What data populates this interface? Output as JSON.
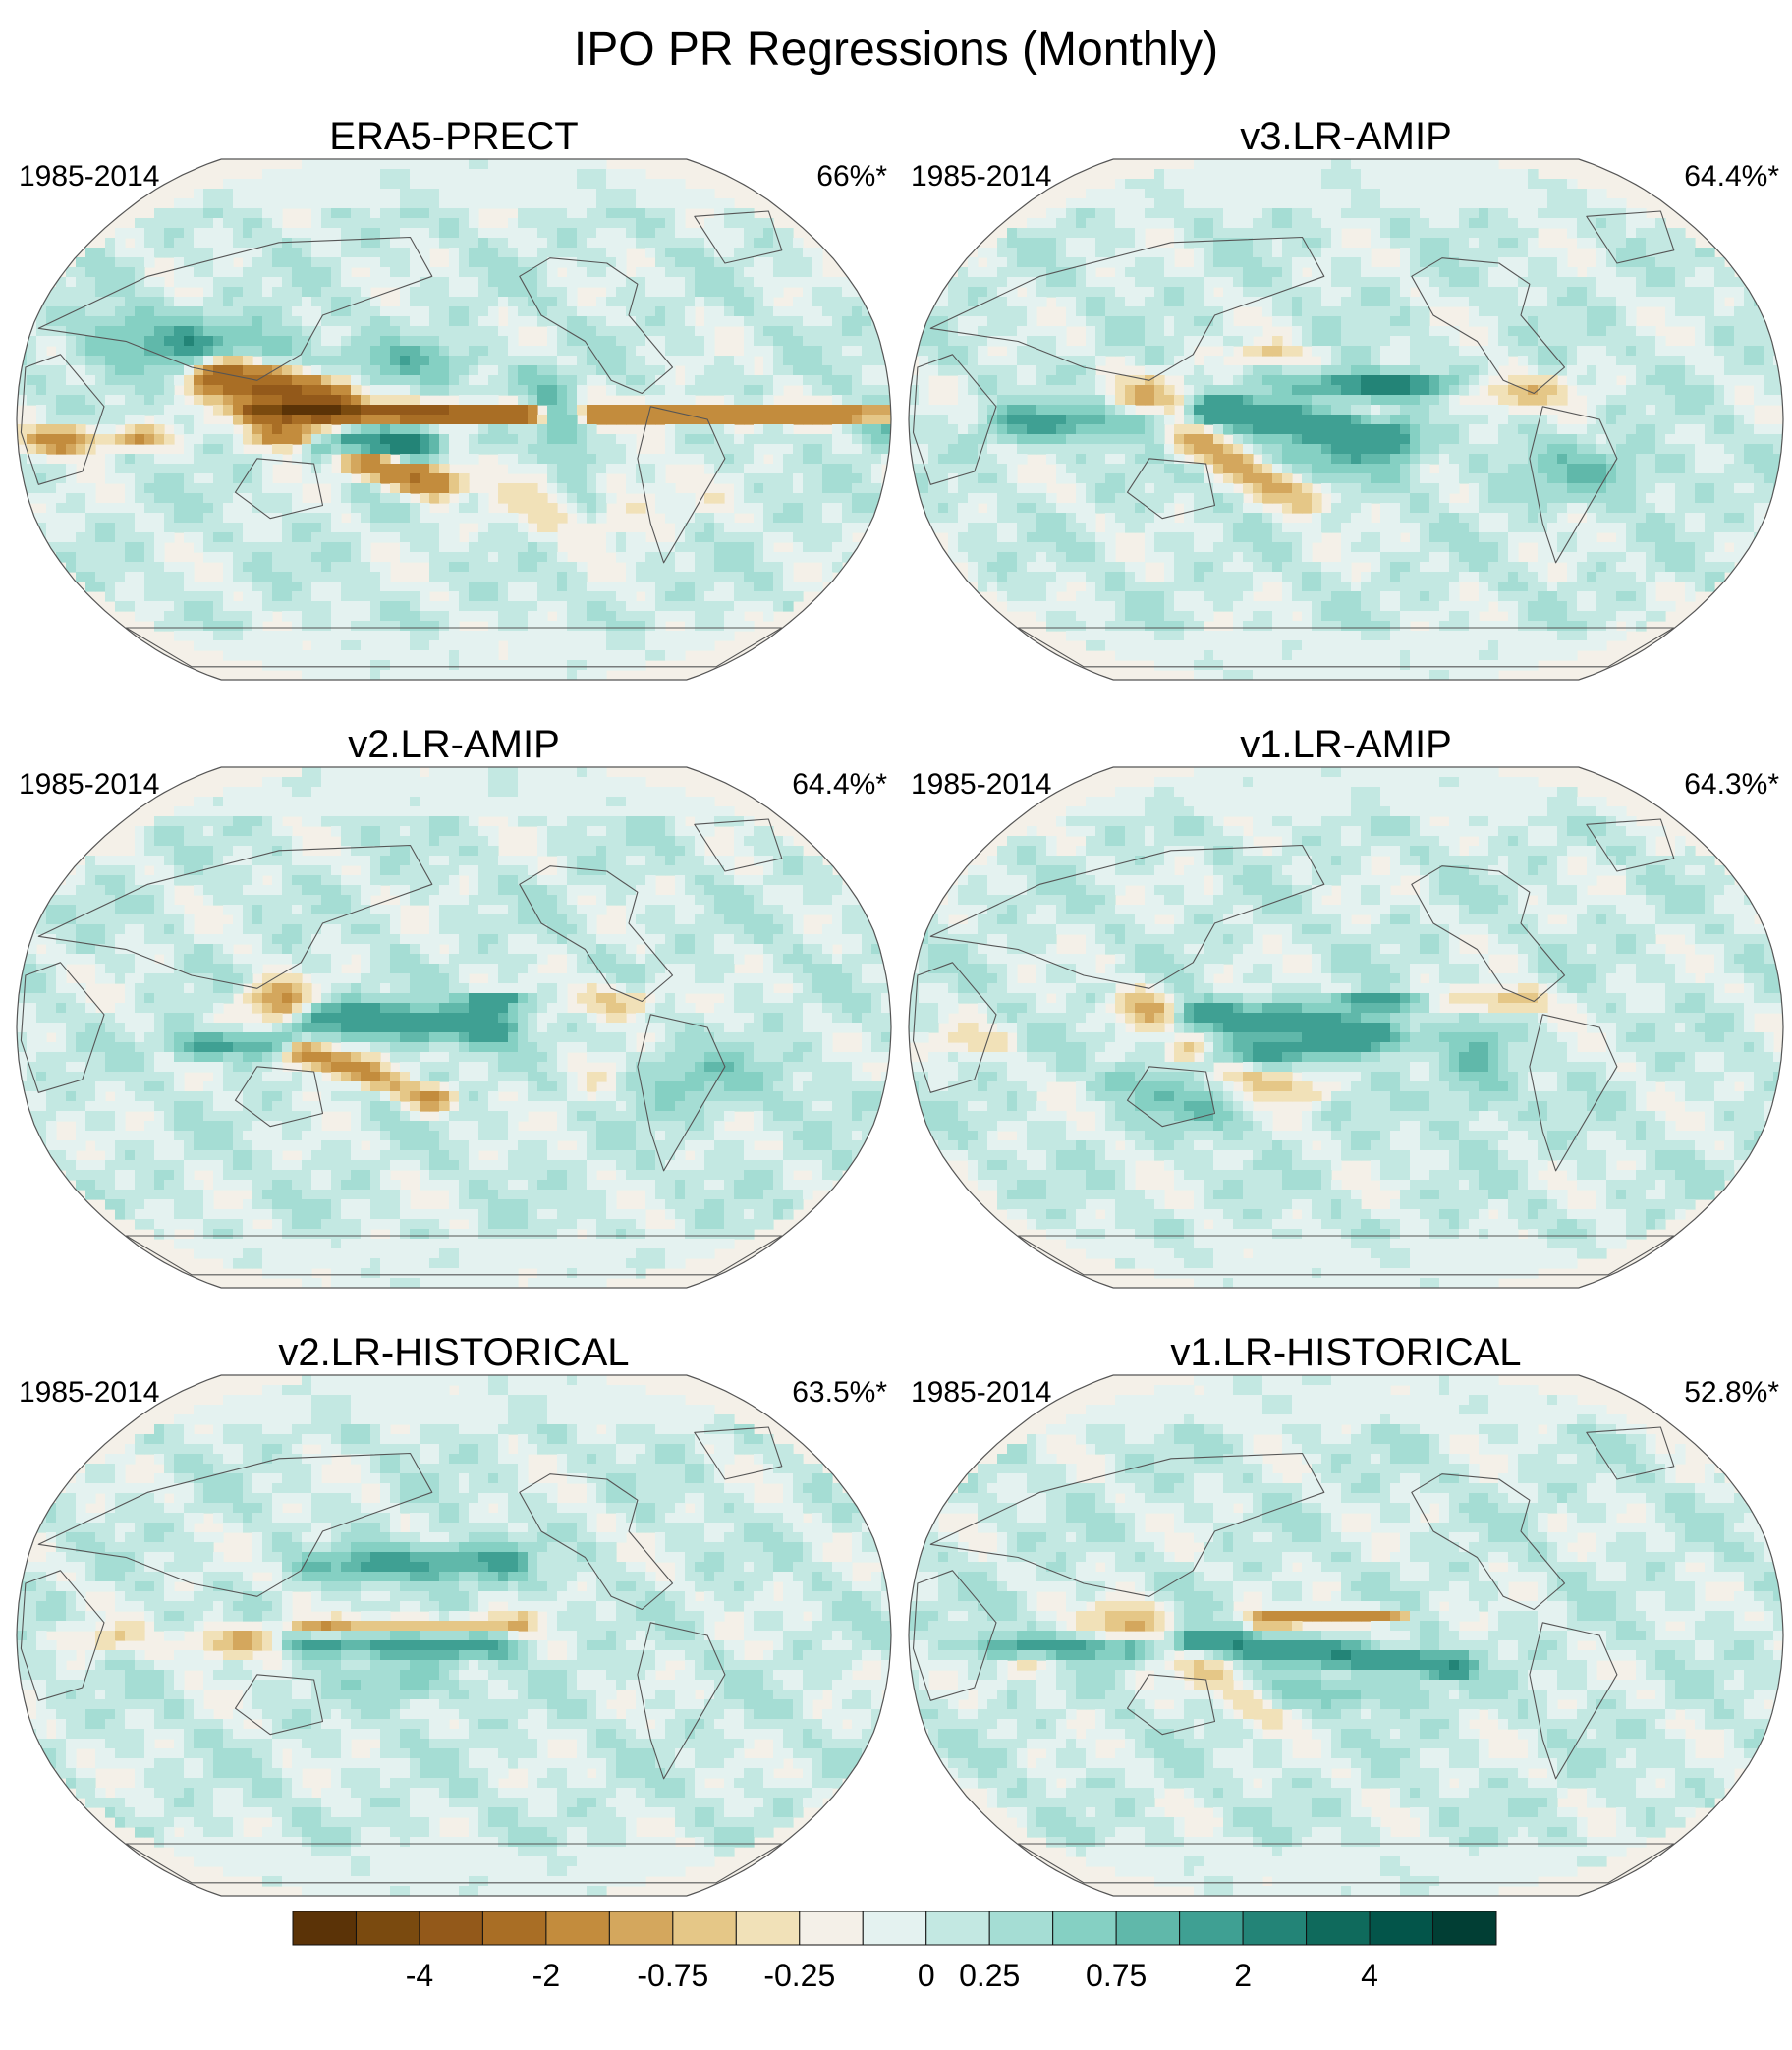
{
  "title": "IPO PR Regressions (Monthly)",
  "chart_data": {
    "type": "heatmap",
    "projection": "robinson",
    "grid": false,
    "legend": "bottom",
    "panels": [
      {
        "name": "ERA5-PRECT",
        "period": "1985-2014",
        "stat": "66%*",
        "pattern": "era5"
      },
      {
        "name": "v3.LR-AMIP",
        "period": "1985-2014",
        "stat": "64.4%*",
        "pattern": "v3amip"
      },
      {
        "name": "v2.LR-AMIP",
        "period": "1985-2014",
        "stat": "64.4%*",
        "pattern": "v2amip"
      },
      {
        "name": "v1.LR-AMIP",
        "period": "1985-2014",
        "stat": "64.3%*",
        "pattern": "v1amip"
      },
      {
        "name": "v2.LR-HISTORICAL",
        "period": "1985-2014",
        "stat": "63.5%*",
        "pattern": "v2hist"
      },
      {
        "name": "v1.LR-HISTORICAL",
        "period": "1985-2014",
        "stat": "52.8%*",
        "pattern": "v1hist"
      }
    ],
    "colorbar": {
      "colors": [
        "#5b3307",
        "#7a4a0f",
        "#93591a",
        "#a96e25",
        "#c38c3d",
        "#d4a75d",
        "#e5c787",
        "#f1e1b8",
        "#f4f0e8",
        "#e4f2f0",
        "#c3e8e2",
        "#a5ddd4",
        "#85d0c3",
        "#60b8aa",
        "#3fa093",
        "#238477",
        "#0f6a5c",
        "#03554a",
        "#013e34"
      ],
      "tick_labels": [
        "-4",
        "-2",
        "-0.75",
        "-0.25",
        "0",
        "0.25",
        "0.75",
        "2",
        "4"
      ],
      "tick_boundaries": [
        2,
        4,
        6,
        8,
        10,
        11,
        13,
        15,
        17
      ]
    }
  }
}
